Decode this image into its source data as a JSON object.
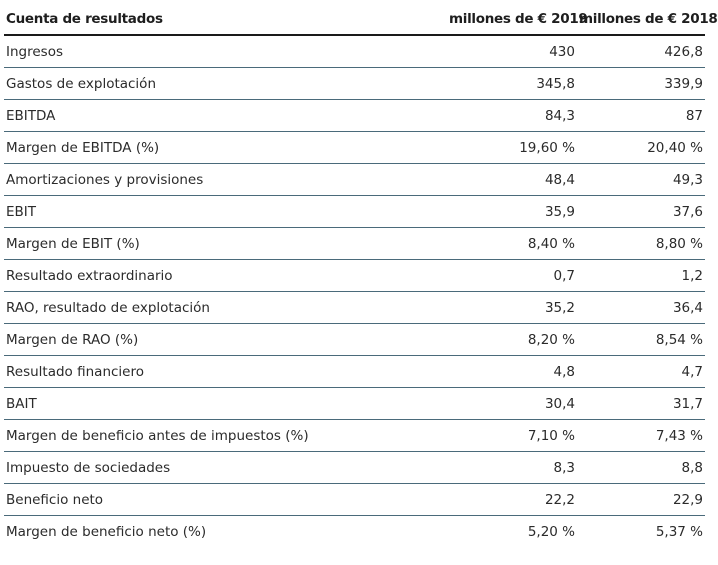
{
  "table": {
    "headers": {
      "label": "Cuenta de resultados",
      "y2019": "millones de € 2019",
      "y2018": "millones de € 2018"
    },
    "rows": [
      {
        "label": "Ingresos",
        "y2019": "430",
        "y2018": "426,8"
      },
      {
        "label": "Gastos de explotación",
        "y2019": "345,8",
        "y2018": "339,9"
      },
      {
        "label": "EBITDA",
        "y2019": "84,3",
        "y2018": "87"
      },
      {
        "label": "Margen de EBITDA (%)",
        "y2019": "19,60 %",
        "y2018": "20,40 %"
      },
      {
        "label": "Amortizaciones y provisiones",
        "y2019": "48,4",
        "y2018": "49,3"
      },
      {
        "label": "EBIT",
        "y2019": "35,9",
        "y2018": "37,6"
      },
      {
        "label": "Margen de EBIT (%)",
        "y2019": "8,40 %",
        "y2018": "8,80 %"
      },
      {
        "label": "Resultado extraordinario",
        "y2019": "0,7",
        "y2018": "1,2"
      },
      {
        "label": "RAO, resultado de explotación",
        "y2019": "35,2",
        "y2018": "36,4"
      },
      {
        "label": "Margen de RAO (%)",
        "y2019": "8,20 %",
        "y2018": "8,54 %"
      },
      {
        "label": "Resultado financiero",
        "y2019": "4,8",
        "y2018": "4,7"
      },
      {
        "label": "BAIT",
        "y2019": "30,4",
        "y2018": "31,7"
      },
      {
        "label": "Margen de beneficio antes de impuestos (%)",
        "y2019": "7,10 %",
        "y2018": "7,43 %"
      },
      {
        "label": "Impuesto de sociedades",
        "y2019": "8,3",
        "y2018": "8,8"
      },
      {
        "label": "Beneficio neto",
        "y2019": "22,2",
        "y2018": "22,9"
      },
      {
        "label": "Margen de beneficio neto (%)",
        "y2019": "5,20 %",
        "y2018": "5,37 %"
      }
    ]
  }
}
